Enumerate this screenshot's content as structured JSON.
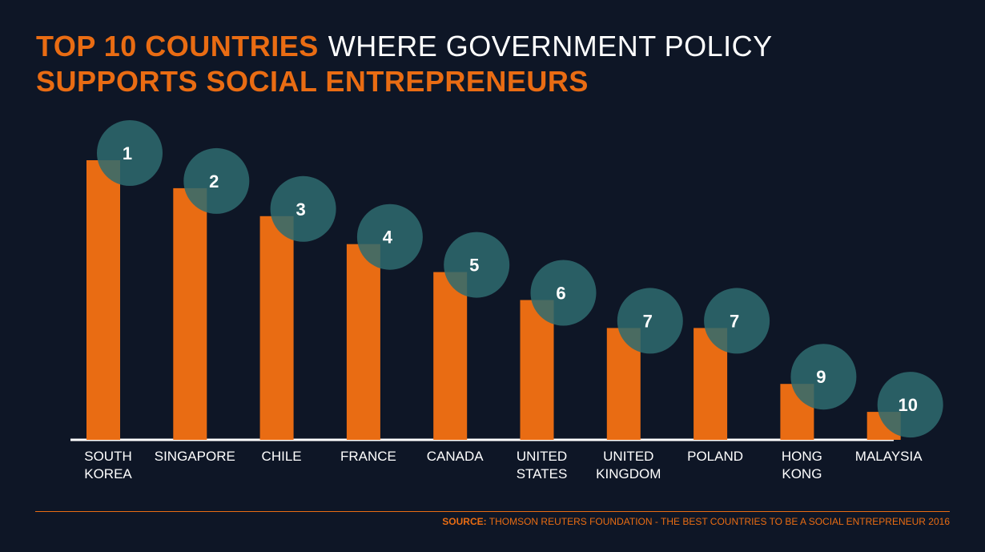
{
  "title": {
    "line1_bold": "TOP 10 COUNTRIES",
    "line1_light": "WHERE GOVERNMENT POLICY",
    "line2_bold": "SUPPORTS SOCIAL ENTREPRENEURS"
  },
  "source": {
    "label": "SOURCE:",
    "text": "THOMSON REUTERS FOUNDATION - THE BEST COUNTRIES TO BE A SOCIAL ENTREPRENEUR 2016"
  },
  "colors": {
    "background": "#0e1626",
    "bar": "#e96c13",
    "circle": "#2e6b70",
    "accent": "#e96c13",
    "text": "#ffffff"
  },
  "chart_data": {
    "type": "bar",
    "categories": [
      [
        "SOUTH",
        "KOREA"
      ],
      [
        "SINGAPORE"
      ],
      [
        "CHILE"
      ],
      [
        "FRANCE"
      ],
      [
        "CANADA"
      ],
      [
        "UNITED",
        "STATES"
      ],
      [
        "UNITED",
        "KINGDOM"
      ],
      [
        "POLAND"
      ],
      [
        "HONG",
        "KONG"
      ],
      [
        "MALAYSIA"
      ]
    ],
    "values": [
      1,
      2,
      3,
      4,
      5,
      6,
      7,
      7,
      9,
      10
    ],
    "data_labels": [
      "1",
      "2",
      "3",
      "4",
      "5",
      "6",
      "7",
      "7",
      "9",
      "10"
    ],
    "value_meaning": "rank",
    "title": "",
    "xlabel": "",
    "ylabel": "",
    "grid": false
  }
}
